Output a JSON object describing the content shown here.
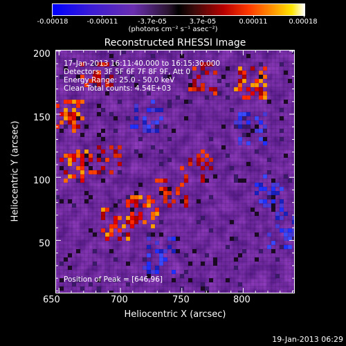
{
  "colorbar": {
    "tick_labels": [
      "-0.00018",
      "-0.00011",
      "-3.7e-05",
      "3.7e-05",
      "0.00011",
      "0.00018"
    ],
    "units": "(photons cm⁻² s⁻¹ asec⁻²)"
  },
  "chart_data": {
    "type": "heatmap",
    "title": "Reconstructed RHESSI Image",
    "xlabel": "Heliocentric X (arcsec)",
    "ylabel": "Heliocentric Y (arcsec)",
    "xlim": [
      647,
      842
    ],
    "ylim": [
      8,
      201
    ],
    "x_ticks": [
      650,
      700,
      750,
      800
    ],
    "y_ticks": [
      50,
      100,
      150,
      200
    ],
    "colorbar_range": [
      -0.00018,
      0.00018
    ],
    "annotations": [
      "17-Jan-2013 16:11:40.000 to 16:15:30.000",
      "Detectors: 3F 5F 6F 7F 8F 9F, Att 0",
      "Energy Range: 25.0 - 50.0 keV",
      "Clean     Total counts: 4.54E+03"
    ],
    "peak_label": "Position of Peak = [646,96]",
    "bright_sources": [
      {
        "x": 655,
        "y": 150,
        "level": "high"
      },
      {
        "x": 660,
        "y": 110,
        "level": "high"
      },
      {
        "x": 685,
        "y": 115,
        "level": "medium"
      },
      {
        "x": 695,
        "y": 65,
        "level": "high"
      },
      {
        "x": 715,
        "y": 75,
        "level": "high"
      },
      {
        "x": 740,
        "y": 90,
        "level": "medium"
      },
      {
        "x": 760,
        "y": 110,
        "level": "medium"
      },
      {
        "x": 765,
        "y": 180,
        "level": "medium"
      },
      {
        "x": 805,
        "y": 175,
        "level": "high"
      },
      {
        "x": 680,
        "y": 185,
        "level": "medium"
      }
    ],
    "dim_sources": [
      {
        "x": 820,
        "y": 90,
        "level": "low"
      },
      {
        "x": 805,
        "y": 140,
        "level": "low"
      },
      {
        "x": 720,
        "y": 150,
        "level": "low"
      },
      {
        "x": 830,
        "y": 60,
        "level": "low"
      },
      {
        "x": 730,
        "y": 40,
        "level": "low"
      }
    ]
  },
  "timestamp": "19-Jan-2013 06:29"
}
